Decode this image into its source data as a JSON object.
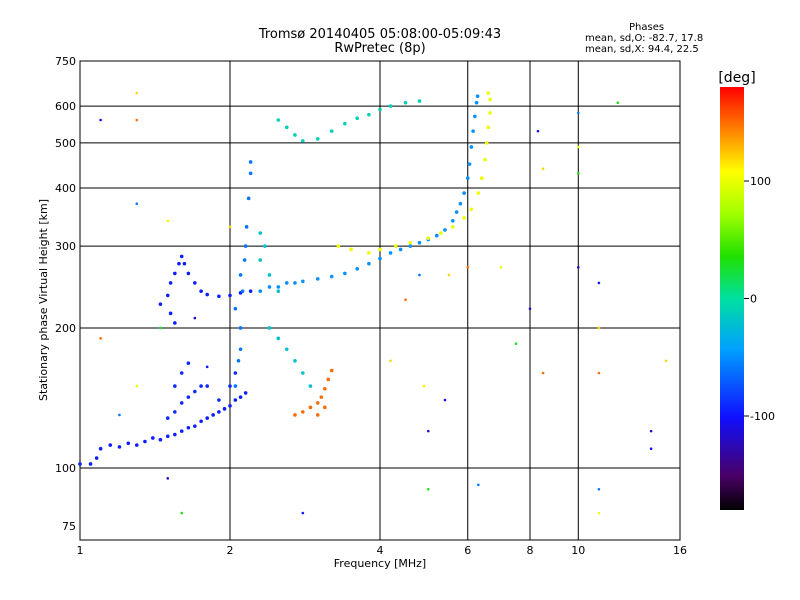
{
  "header": {
    "title": "Tromsø 20140405 05:08:00-05:09:43",
    "subtitle": "RwPretec (8p)"
  },
  "phase_stats": {
    "heading": "Phases",
    "line_o": "mean, sd,O: -82.7, 17.8",
    "line_x": "mean, sd,X:  94.4, 22.5"
  },
  "colorbar": {
    "label": "[deg]",
    "ticks": [
      {
        "value": 100,
        "label": "100"
      },
      {
        "value": 0,
        "label": "0"
      },
      {
        "value": -100,
        "label": "-100"
      }
    ],
    "range": [
      -180,
      180
    ]
  },
  "chart_data": {
    "type": "scatter",
    "title": "Tromsø 20140405 05:08:00-05:09:43",
    "subtitle": "RwPretec (8p)",
    "xlabel": "Frequency [MHz]",
    "ylabel": "Stationary phase Virtual Height [km]",
    "xscale": "log",
    "yscale": "log",
    "xlim": [
      1,
      16
    ],
    "ylim": [
      70,
      750
    ],
    "xticks": [
      1,
      2,
      4,
      6,
      8,
      10,
      16
    ],
    "yticks": [
      75,
      100,
      200,
      300,
      400,
      500,
      600,
      750
    ],
    "xgrid": [
      2,
      4,
      6,
      8,
      10
    ],
    "ygrid": [
      100,
      200,
      300,
      400,
      500,
      600
    ],
    "color_scale": "phase [deg], rainbow from -180 (black) to 180 (red)",
    "traces": [
      {
        "name": "",
        "phase": -95,
        "points": [
          [
            1.0,
            102
          ],
          [
            1.05,
            102
          ],
          [
            1.08,
            105
          ],
          [
            1.1,
            110
          ],
          [
            1.15,
            112
          ],
          [
            1.2,
            111
          ],
          [
            1.25,
            113
          ],
          [
            1.3,
            112
          ],
          [
            1.35,
            114
          ],
          [
            1.4,
            116
          ],
          [
            1.45,
            115
          ],
          [
            1.5,
            117
          ],
          [
            1.55,
            118
          ],
          [
            1.6,
            120
          ],
          [
            1.65,
            122
          ],
          [
            1.7,
            123
          ],
          [
            1.75,
            126
          ],
          [
            1.8,
            128
          ],
          [
            1.85,
            130
          ],
          [
            1.9,
            132
          ],
          [
            1.95,
            134
          ],
          [
            2.0,
            136
          ],
          [
            2.05,
            140
          ],
          [
            2.1,
            142
          ],
          [
            2.15,
            145
          ]
        ]
      },
      {
        "name": "",
        "phase": -90,
        "points": [
          [
            1.5,
            128
          ],
          [
            1.55,
            132
          ],
          [
            1.6,
            138
          ],
          [
            1.65,
            142
          ],
          [
            1.7,
            146
          ],
          [
            1.75,
            150
          ],
          [
            1.6,
            160
          ],
          [
            1.65,
            168
          ],
          [
            1.55,
            150
          ],
          [
            1.8,
            150
          ],
          [
            1.9,
            140
          ],
          [
            2.0,
            150
          ],
          [
            2.05,
            160
          ]
        ]
      },
      {
        "name": "",
        "phase": -95,
        "points": [
          [
            1.45,
            225
          ],
          [
            1.5,
            235
          ],
          [
            1.52,
            250
          ],
          [
            1.55,
            262
          ],
          [
            1.58,
            275
          ],
          [
            1.6,
            285
          ],
          [
            1.62,
            275
          ],
          [
            1.65,
            262
          ],
          [
            1.7,
            250
          ],
          [
            1.75,
            240
          ],
          [
            1.8,
            236
          ],
          [
            1.9,
            234
          ],
          [
            2.0,
            235
          ],
          [
            2.1,
            238
          ],
          [
            2.2,
            240
          ],
          [
            1.52,
            215
          ],
          [
            1.55,
            205
          ]
        ]
      },
      {
        "name": "",
        "phase": -60,
        "points": [
          [
            2.05,
            150
          ],
          [
            2.08,
            170
          ],
          [
            2.1,
            200
          ],
          [
            2.12,
            240
          ],
          [
            2.14,
            280
          ],
          [
            2.16,
            330
          ],
          [
            2.18,
            380
          ],
          [
            2.2,
            430
          ],
          [
            2.2,
            455
          ],
          [
            2.15,
            300
          ],
          [
            2.1,
            260
          ],
          [
            2.05,
            220
          ],
          [
            2.1,
            180
          ]
        ]
      },
      {
        "name": "",
        "phase": -50,
        "points": [
          [
            2.3,
            240
          ],
          [
            2.4,
            245
          ],
          [
            2.5,
            245
          ],
          [
            2.6,
            250
          ],
          [
            2.7,
            250
          ],
          [
            2.8,
            252
          ],
          [
            3.0,
            255
          ],
          [
            3.2,
            258
          ],
          [
            3.4,
            262
          ],
          [
            3.6,
            268
          ],
          [
            3.8,
            275
          ],
          [
            4.0,
            282
          ],
          [
            4.2,
            290
          ],
          [
            4.4,
            295
          ],
          [
            4.6,
            300
          ],
          [
            4.8,
            305
          ],
          [
            5.0,
            310
          ],
          [
            5.2,
            316
          ],
          [
            5.4,
            325
          ],
          [
            5.6,
            340
          ],
          [
            5.7,
            355
          ],
          [
            5.8,
            370
          ],
          [
            5.9,
            390
          ],
          [
            6.0,
            420
          ],
          [
            6.05,
            450
          ],
          [
            6.1,
            490
          ],
          [
            6.15,
            530
          ],
          [
            6.2,
            570
          ],
          [
            6.25,
            610
          ],
          [
            6.28,
            630
          ]
        ]
      },
      {
        "name": "",
        "phase": -20,
        "points": [
          [
            2.4,
            200
          ],
          [
            2.5,
            190
          ],
          [
            2.6,
            180
          ],
          [
            2.7,
            170
          ],
          [
            2.8,
            160
          ],
          [
            2.9,
            150
          ],
          [
            2.5,
            240
          ],
          [
            2.4,
            260
          ],
          [
            2.3,
            280
          ],
          [
            2.35,
            300
          ],
          [
            2.3,
            320
          ]
        ]
      },
      {
        "name": "",
        "phase": -10,
        "points": [
          [
            2.5,
            560
          ],
          [
            2.6,
            540
          ],
          [
            2.7,
            520
          ],
          [
            2.8,
            505
          ],
          [
            3.0,
            510
          ],
          [
            3.2,
            530
          ],
          [
            3.4,
            550
          ],
          [
            3.6,
            565
          ],
          [
            3.8,
            575
          ],
          [
            4.0,
            590
          ],
          [
            4.2,
            600
          ],
          [
            4.5,
            610
          ],
          [
            4.8,
            615
          ]
        ]
      },
      {
        "name": "",
        "phase": 100,
        "points": [
          [
            3.3,
            300
          ],
          [
            3.5,
            295
          ],
          [
            3.8,
            290
          ],
          [
            4.0,
            295
          ],
          [
            4.3,
            300
          ],
          [
            4.6,
            305
          ],
          [
            5.0,
            312
          ],
          [
            5.3,
            320
          ],
          [
            5.6,
            330
          ],
          [
            5.9,
            345
          ],
          [
            6.1,
            360
          ],
          [
            6.3,
            390
          ],
          [
            6.4,
            420
          ],
          [
            6.5,
            460
          ],
          [
            6.55,
            500
          ],
          [
            6.6,
            540
          ],
          [
            6.65,
            580
          ],
          [
            6.65,
            620
          ],
          [
            6.6,
            640
          ]
        ]
      },
      {
        "name": "",
        "phase": 150,
        "points": [
          [
            2.7,
            130
          ],
          [
            2.8,
            132
          ],
          [
            2.9,
            135
          ],
          [
            3.0,
            138
          ],
          [
            3.05,
            142
          ],
          [
            3.1,
            148
          ],
          [
            3.15,
            155
          ],
          [
            3.2,
            162
          ],
          [
            3.1,
            135
          ],
          [
            3.0,
            130
          ]
        ]
      }
    ],
    "scattered_points": [
      [
        1.1,
        560
      ],
      [
        1.3,
        640
      ],
      [
        1.3,
        560
      ],
      [
        1.3,
        370
      ],
      [
        1.5,
        340
      ],
      [
        1.45,
        200
      ],
      [
        1.7,
        210
      ],
      [
        1.8,
        165
      ],
      [
        2.0,
        330
      ],
      [
        1.1,
        190
      ],
      [
        1.2,
        130
      ],
      [
        1.3,
        150
      ],
      [
        1.6,
        80
      ],
      [
        1.5,
        95
      ],
      [
        2.8,
        80
      ],
      [
        4.2,
        170
      ],
      [
        4.5,
        230
      ],
      [
        4.8,
        260
      ],
      [
        4.9,
        150
      ],
      [
        5.0,
        90
      ],
      [
        5.0,
        120
      ],
      [
        5.4,
        140
      ],
      [
        5.5,
        260
      ],
      [
        6.0,
        270
      ],
      [
        6.3,
        92
      ],
      [
        7.0,
        270
      ],
      [
        7.5,
        185
      ],
      [
        8.0,
        220
      ],
      [
        8.3,
        530
      ],
      [
        8.5,
        440
      ],
      [
        8.5,
        160
      ],
      [
        10.0,
        580
      ],
      [
        10.0,
        490
      ],
      [
        10.0,
        430
      ],
      [
        10.0,
        270
      ],
      [
        11.0,
        250
      ],
      [
        11.0,
        200
      ],
      [
        11.0,
        160
      ],
      [
        11.0,
        90
      ],
      [
        11.0,
        80
      ],
      [
        12.0,
        610
      ],
      [
        14.0,
        120
      ],
      [
        14.0,
        110
      ],
      [
        15.0,
        170
      ]
    ]
  }
}
